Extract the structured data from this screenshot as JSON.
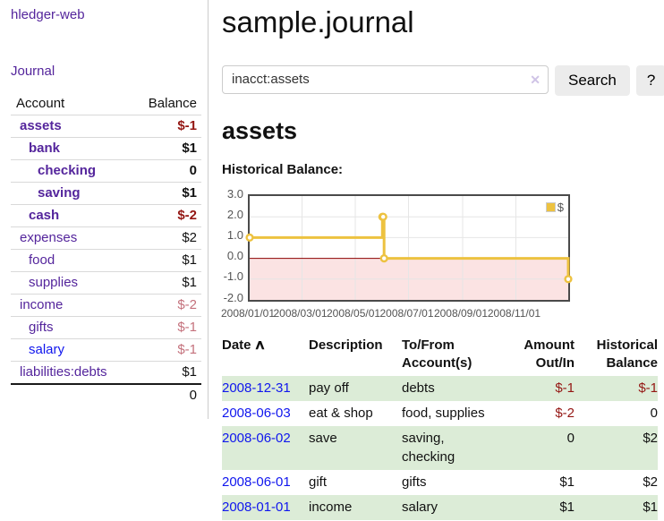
{
  "sidebar": {
    "app_title": "hledger-web",
    "nav": {
      "journal_label": "Journal"
    },
    "accounts_header": {
      "account": "Account",
      "balance": "Balance"
    },
    "accounts": [
      {
        "name": "assets",
        "depth": 1,
        "bold": true,
        "balance": "$-1",
        "balance_style": "neg-strong",
        "link_color": "purple"
      },
      {
        "name": "bank",
        "depth": 2,
        "bold": true,
        "balance": "$1",
        "balance_style": "pos",
        "link_color": "purple"
      },
      {
        "name": "checking",
        "depth": 3,
        "bold": true,
        "balance": "0",
        "balance_style": "pos",
        "link_color": "purple"
      },
      {
        "name": "saving",
        "depth": 3,
        "bold": true,
        "balance": "$1",
        "balance_style": "pos",
        "link_color": "purple"
      },
      {
        "name": "cash",
        "depth": 2,
        "bold": true,
        "balance": "$-2",
        "balance_style": "neg-strong",
        "link_color": "purple"
      },
      {
        "name": "expenses",
        "depth": 1,
        "bold": false,
        "balance": "$2",
        "balance_style": "pos",
        "link_color": "purple"
      },
      {
        "name": "food",
        "depth": 2,
        "bold": false,
        "balance": "$1",
        "balance_style": "pos",
        "link_color": "purple"
      },
      {
        "name": "supplies",
        "depth": 2,
        "bold": false,
        "balance": "$1",
        "balance_style": "pos",
        "link_color": "purple"
      },
      {
        "name": "income",
        "depth": 1,
        "bold": false,
        "balance": "$-2",
        "balance_style": "neg-muted",
        "link_color": "purple"
      },
      {
        "name": "gifts",
        "depth": 2,
        "bold": false,
        "balance": "$-1",
        "balance_style": "neg-muted",
        "link_color": "purple"
      },
      {
        "name": "salary",
        "depth": 2,
        "bold": false,
        "balance": "$-1",
        "balance_style": "neg-muted",
        "link_color": "blue"
      },
      {
        "name": "liabilities:debts",
        "depth": 1,
        "bold": false,
        "balance": "$1",
        "balance_style": "pos",
        "link_color": "purple"
      }
    ],
    "total": "0"
  },
  "main": {
    "title": "sample.journal",
    "search": {
      "value": "inacct:assets",
      "button_label": "Search",
      "help_label": "?"
    },
    "account_heading": "assets",
    "chart_title": "Historical Balance:"
  },
  "register": {
    "headers": {
      "date": "Date",
      "description": "Description",
      "tofrom_line1": "To/From",
      "tofrom_line2": "Account(s)",
      "amount_line1": "Amount",
      "amount_line2": "Out/In",
      "balance_line1": "Historical",
      "balance_line2": "Balance"
    },
    "rows": [
      {
        "date": "2008-12-31",
        "description": "pay off",
        "accounts": "debts",
        "amount": "$-1",
        "balance": "$-1"
      },
      {
        "date": "2008-06-03",
        "description": "eat & shop",
        "accounts": "food, supplies",
        "amount": "$-2",
        "balance": "0"
      },
      {
        "date": "2008-06-02",
        "description": "save",
        "accounts": "saving, checking",
        "amount": "0",
        "balance": "$2"
      },
      {
        "date": "2008-06-01",
        "description": "gift",
        "accounts": "gifts",
        "amount": "$1",
        "balance": "$2"
      },
      {
        "date": "2008-01-01",
        "description": "income",
        "accounts": "salary",
        "amount": "$1",
        "balance": "$1"
      }
    ]
  },
  "chart_data": {
    "type": "line",
    "title": "Historical Balance:",
    "step": true,
    "series": [
      {
        "name": "$",
        "color": "#edc240",
        "points": [
          [
            "2008-01-01",
            1
          ],
          [
            "2008-06-01",
            2
          ],
          [
            "2008-06-02",
            2
          ],
          [
            "2008-06-03",
            0
          ],
          [
            "2008-12-31",
            -1
          ]
        ]
      }
    ],
    "xlim": [
      "2008-01-01",
      "2008-12-31"
    ],
    "ylim": [
      -2,
      3
    ],
    "yticks": [
      3,
      2,
      1,
      0,
      -1,
      -2
    ],
    "ytick_labels": [
      "3.0",
      "2.0",
      "1.0",
      "0.0",
      "-1.0",
      "-2.0"
    ],
    "xticks": [
      "2008-01-01",
      "2008-03-01",
      "2008-05-01",
      "2008-07-01",
      "2008-09-01",
      "2008-11-01"
    ],
    "xtick_labels": [
      "2008/01/01",
      "2008/03/01",
      "2008/05/01",
      "2008/07/01",
      "2008/09/01",
      "2008/11/01"
    ],
    "legend": {
      "label": "$",
      "position": "top-right"
    },
    "grid": true
  },
  "icons": {
    "sort_asc": "∧",
    "clear_search": "✕"
  },
  "colors": {
    "link_purple": "#54259c",
    "link_blue": "#1016ee",
    "negative_strong": "#941613",
    "negative_muted": "#c4717c",
    "row_stripe_green": "#dcecd7",
    "chart_line": "#edc240",
    "chart_below_zero_fill": "#fbe3e3",
    "chart_zero_line": "#8b0000",
    "chart_border": "#4a4a4a",
    "chart_grid": "#e6e6e6",
    "axis_label": "#545454",
    "button_bg": "#ececec"
  }
}
